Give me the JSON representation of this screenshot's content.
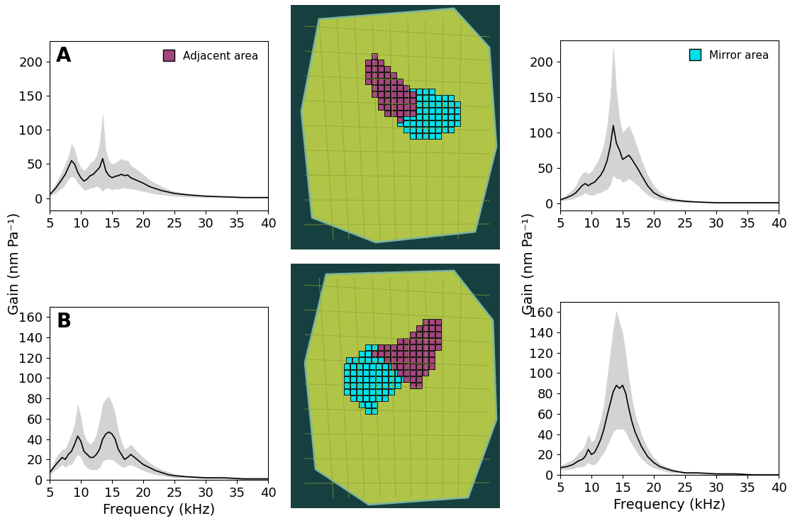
{
  "figure": {
    "ylabel": "Gain (nm Pa⁻¹)"
  },
  "chart_data": [
    {
      "type": "line",
      "title": "A",
      "xlabel": null,
      "legend": "upper right",
      "area": {
        "name": "Adjacent area",
        "color": "#a3457f"
      },
      "xlim": [
        5,
        40
      ],
      "xticks": [
        5,
        10,
        15,
        20,
        25,
        30,
        35,
        40
      ],
      "ylim": [
        -18,
        230
      ],
      "yticks": [
        0,
        50,
        100,
        150,
        200
      ],
      "x": [
        5,
        6,
        7,
        7.5,
        8,
        8.5,
        9,
        9.5,
        10,
        10.5,
        11,
        11.5,
        12,
        12.5,
        13,
        13.5,
        14,
        14.5,
        15,
        15.5,
        16,
        16.5,
        17,
        17.5,
        18,
        19,
        20,
        21,
        22,
        23,
        24,
        25,
        27,
        30,
        33,
        36,
        40
      ],
      "series": [
        {
          "color": "#000000",
          "values": [
            5,
            15,
            28,
            35,
            45,
            55,
            50,
            38,
            30,
            25,
            28,
            33,
            35,
            40,
            45,
            58,
            40,
            33,
            30,
            32,
            33,
            35,
            33,
            34,
            30,
            26,
            22,
            17,
            14,
            11,
            9,
            7,
            5,
            3,
            2,
            1,
            1
          ],
          "upper": [
            8,
            22,
            40,
            50,
            62,
            80,
            72,
            55,
            45,
            40,
            45,
            52,
            55,
            62,
            80,
            125,
            70,
            55,
            50,
            52,
            55,
            58,
            55,
            56,
            48,
            42,
            35,
            27,
            22,
            17,
            13,
            10,
            7,
            4,
            3,
            2,
            2
          ],
          "lower": [
            3,
            8,
            15,
            20,
            28,
            32,
            30,
            22,
            18,
            12,
            12,
            15,
            15,
            18,
            15,
            10,
            15,
            15,
            12,
            14,
            13,
            15,
            15,
            14,
            14,
            12,
            10,
            8,
            6,
            5,
            4,
            3,
            2,
            1,
            1,
            0,
            0
          ]
        }
      ]
    },
    {
      "type": "line",
      "title": null,
      "xlabel": null,
      "legend": "upper right",
      "area": {
        "name": "Mirror area",
        "color": "#00e1ec"
      },
      "xlim": [
        5,
        40
      ],
      "xticks": [
        5,
        10,
        15,
        20,
        25,
        30,
        35,
        40
      ],
      "ylim": [
        -10,
        230
      ],
      "yticks": [
        0,
        50,
        100,
        150,
        200
      ],
      "x": [
        5,
        6,
        7,
        7.5,
        8,
        8.5,
        9,
        9.5,
        10,
        10.5,
        11,
        11.5,
        12,
        12.5,
        13,
        13.5,
        14,
        14.5,
        15,
        15.5,
        16,
        16.5,
        17,
        17.5,
        18,
        19,
        20,
        21,
        22,
        23,
        24,
        25,
        27,
        30,
        33,
        36,
        40
      ],
      "series": [
        {
          "color": "#000000",
          "values": [
            5,
            8,
            12,
            15,
            20,
            25,
            28,
            25,
            28,
            30,
            35,
            40,
            48,
            60,
            80,
            110,
            85,
            75,
            62,
            65,
            68,
            62,
            55,
            48,
            40,
            25,
            15,
            10,
            7,
            5,
            4,
            3,
            2,
            1,
            1,
            1,
            1
          ],
          "upper": [
            7,
            12,
            20,
            25,
            35,
            42,
            45,
            42,
            45,
            52,
            60,
            70,
            85,
            110,
            150,
            225,
            160,
            120,
            100,
            105,
            110,
            100,
            88,
            75,
            62,
            40,
            25,
            16,
            11,
            8,
            6,
            5,
            3,
            2,
            2,
            2,
            2
          ],
          "lower": [
            3,
            5,
            6,
            8,
            10,
            12,
            15,
            12,
            12,
            12,
            15,
            15,
            18,
            20,
            25,
            40,
            35,
            35,
            30,
            32,
            35,
            32,
            28,
            25,
            20,
            12,
            7,
            5,
            3,
            2,
            2,
            1,
            1,
            0,
            0,
            0,
            0
          ]
        }
      ]
    },
    {
      "type": "line",
      "title": "B",
      "xlabel": "Frequency (kHz)",
      "xlim": [
        5,
        40
      ],
      "xticks": [
        5,
        10,
        15,
        20,
        25,
        30,
        35,
        40
      ],
      "ylim": [
        0,
        170
      ],
      "yticks": [
        0,
        20,
        40,
        60,
        80,
        100,
        120,
        140,
        160
      ],
      "x": [
        5,
        6,
        7,
        7.5,
        8,
        8.5,
        9,
        9.5,
        10,
        10.5,
        11,
        11.5,
        12,
        12.5,
        13,
        13.5,
        14,
        14.5,
        15,
        15.5,
        16,
        16.5,
        17,
        17.5,
        18,
        19,
        20,
        21,
        22,
        23,
        24,
        25,
        27,
        30,
        33,
        36,
        40
      ],
      "series": [
        {
          "color": "#000000",
          "values": [
            7,
            15,
            22,
            20,
            25,
            28,
            35,
            43,
            38,
            28,
            25,
            22,
            22,
            25,
            30,
            40,
            45,
            47,
            45,
            40,
            30,
            25,
            20,
            22,
            25,
            20,
            15,
            12,
            9,
            7,
            5,
            4,
            3,
            2,
            2,
            1,
            1
          ],
          "upper": [
            9,
            22,
            30,
            30,
            38,
            45,
            55,
            75,
            62,
            45,
            38,
            35,
            38,
            45,
            58,
            75,
            80,
            82,
            75,
            65,
            48,
            38,
            30,
            32,
            35,
            28,
            22,
            17,
            13,
            10,
            8,
            6,
            4,
            3,
            2,
            2,
            1
          ],
          "lower": [
            5,
            10,
            15,
            12,
            15,
            15,
            20,
            25,
            22,
            15,
            12,
            10,
            10,
            10,
            12,
            18,
            20,
            20,
            20,
            18,
            15,
            13,
            12,
            14,
            15,
            12,
            9,
            7,
            5,
            4,
            3,
            2,
            2,
            1,
            1,
            0,
            0
          ]
        }
      ]
    },
    {
      "type": "line",
      "title": null,
      "xlabel": "Frequency (kHz)",
      "xlim": [
        5,
        40
      ],
      "xticks": [
        5,
        10,
        15,
        20,
        25,
        30,
        35,
        40
      ],
      "ylim": [
        0,
        170
      ],
      "yticks": [
        0,
        20,
        40,
        60,
        80,
        100,
        120,
        140,
        160
      ],
      "x": [
        5,
        6,
        7,
        7.5,
        8,
        8.5,
        9,
        9.5,
        10,
        10.5,
        11,
        11.5,
        12,
        12.5,
        13,
        13.5,
        14,
        14.5,
        15,
        15.5,
        16,
        16.5,
        17,
        17.5,
        18,
        19,
        20,
        21,
        22,
        23,
        24,
        25,
        27,
        30,
        33,
        36,
        40
      ],
      "series": [
        {
          "color": "#000000",
          "values": [
            7,
            8,
            10,
            12,
            14,
            15,
            18,
            25,
            20,
            22,
            28,
            35,
            45,
            58,
            70,
            82,
            88,
            85,
            88,
            80,
            65,
            52,
            42,
            35,
            28,
            18,
            12,
            8,
            6,
            4,
            3,
            2,
            2,
            1,
            1,
            0,
            0
          ],
          "upper": [
            9,
            12,
            15,
            18,
            22,
            25,
            30,
            40,
            32,
            35,
            45,
            55,
            70,
            95,
            120,
            145,
            162,
            150,
            140,
            120,
            95,
            75,
            60,
            50,
            40,
            26,
            17,
            11,
            8,
            6,
            4,
            3,
            2,
            1,
            1,
            1,
            1
          ],
          "lower": [
            5,
            5,
            6,
            7,
            8,
            8,
            9,
            12,
            10,
            10,
            13,
            18,
            22,
            28,
            35,
            42,
            45,
            45,
            45,
            42,
            35,
            30,
            25,
            20,
            16,
            10,
            7,
            5,
            3,
            2,
            2,
            1,
            1,
            0,
            0,
            0,
            0
          ]
        }
      ]
    }
  ]
}
